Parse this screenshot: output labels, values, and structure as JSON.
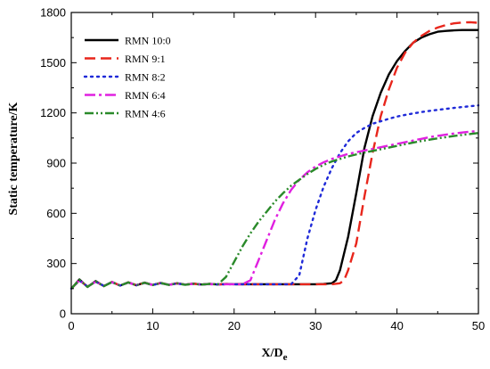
{
  "chart_data": {
    "type": "line",
    "title": "",
    "xlabel": "X/D",
    "xlabel_subscript": "e",
    "ylabel": "Static temperature/K",
    "xlim": [
      0,
      50
    ],
    "ylim": [
      0,
      1800
    ],
    "xticks": [
      0,
      10,
      20,
      30,
      40,
      50
    ],
    "yticks": [
      0,
      300,
      600,
      900,
      1200,
      1500,
      1800
    ],
    "grid": false,
    "legend_position": "top-left",
    "series": [
      {
        "name": "RMN 10:0",
        "color": "#000000",
        "dash": "solid",
        "x": [
          0,
          1,
          2,
          3,
          4,
          5,
          6,
          7,
          8,
          9,
          10,
          11,
          12,
          13,
          14,
          15,
          16,
          17,
          18,
          19,
          20,
          21,
          22,
          23,
          24,
          25,
          26,
          27,
          28,
          29,
          30,
          31,
          32,
          32.5,
          33,
          33.5,
          34,
          35,
          36,
          37,
          38,
          39,
          40,
          41,
          42,
          43,
          44,
          45,
          46,
          47,
          48,
          49,
          50
        ],
        "y": [
          150,
          205,
          160,
          195,
          165,
          190,
          168,
          188,
          170,
          186,
          172,
          184,
          173,
          182,
          174,
          180,
          175,
          179,
          175,
          178,
          176,
          177,
          176,
          176,
          176,
          176,
          176,
          176,
          176,
          176,
          176,
          178,
          182,
          200,
          260,
          360,
          460,
          720,
          990,
          1180,
          1320,
          1430,
          1510,
          1570,
          1620,
          1650,
          1670,
          1685,
          1690,
          1693,
          1695,
          1695,
          1695
        ]
      },
      {
        "name": "RMN 9:1",
        "color": "#e8261c",
        "dash": "long",
        "x": [
          0,
          1,
          2,
          3,
          4,
          5,
          6,
          7,
          8,
          9,
          10,
          11,
          12,
          13,
          14,
          15,
          16,
          17,
          18,
          19,
          20,
          21,
          22,
          23,
          24,
          25,
          26,
          27,
          28,
          29,
          30,
          31,
          32,
          33,
          33.5,
          34,
          35,
          36,
          37,
          38,
          39,
          40,
          41,
          42,
          43,
          44,
          45,
          46,
          47,
          48,
          49,
          50
        ],
        "y": [
          150,
          200,
          162,
          192,
          166,
          189,
          169,
          187,
          171,
          185,
          172,
          183,
          173,
          181,
          174,
          179,
          175,
          178,
          175,
          177,
          176,
          176,
          176,
          176,
          176,
          176,
          176,
          176,
          176,
          176,
          176,
          176,
          176,
          182,
          200,
          260,
          420,
          700,
          960,
          1180,
          1340,
          1470,
          1560,
          1620,
          1660,
          1690,
          1710,
          1725,
          1735,
          1740,
          1742,
          1738
        ]
      },
      {
        "name": "RMN 8:2",
        "color": "#1f2ad8",
        "dash": "dot",
        "x": [
          0,
          1,
          2,
          3,
          4,
          5,
          6,
          7,
          8,
          9,
          10,
          11,
          12,
          13,
          14,
          15,
          16,
          17,
          18,
          19,
          20,
          21,
          22,
          23,
          24,
          25,
          26,
          27,
          28,
          29,
          30,
          31,
          32,
          33,
          34,
          35,
          36,
          37,
          38,
          39,
          40,
          41,
          42,
          43,
          44,
          45,
          46,
          47,
          48,
          49,
          50
        ],
        "y": [
          150,
          198,
          163,
          191,
          167,
          188,
          169,
          186,
          171,
          184,
          172,
          182,
          173,
          180,
          174,
          178,
          175,
          177,
          175,
          176,
          176,
          176,
          176,
          176,
          176,
          176,
          176,
          176,
          230,
          450,
          620,
          760,
          870,
          960,
          1030,
          1080,
          1110,
          1135,
          1150,
          1165,
          1178,
          1188,
          1197,
          1205,
          1212,
          1218,
          1224,
          1230,
          1235,
          1240,
          1245
        ]
      },
      {
        "name": "RMN 6:4",
        "color": "#e020e0",
        "dash": "dashdot",
        "x": [
          0,
          1,
          2,
          3,
          4,
          5,
          6,
          7,
          8,
          9,
          10,
          11,
          12,
          13,
          14,
          15,
          16,
          17,
          18,
          19,
          20,
          21,
          22,
          23,
          24,
          25,
          26,
          27,
          28,
          29,
          30,
          31,
          32,
          33,
          34,
          35,
          36,
          37,
          38,
          39,
          40,
          41,
          42,
          43,
          44,
          45,
          46,
          47,
          48,
          49,
          50
        ],
        "y": [
          150,
          200,
          162,
          191,
          166,
          188,
          169,
          186,
          171,
          184,
          172,
          182,
          173,
          180,
          174,
          178,
          175,
          177,
          175,
          176,
          176,
          176,
          200,
          320,
          440,
          560,
          660,
          740,
          800,
          845,
          880,
          905,
          925,
          940,
          955,
          965,
          975,
          985,
          995,
          1005,
          1015,
          1025,
          1035,
          1045,
          1055,
          1063,
          1070,
          1077,
          1083,
          1088,
          1092
        ]
      },
      {
        "name": "RMN 4:6",
        "color": "#2a8a2a",
        "dash": "dashdotdot",
        "x": [
          0,
          1,
          2,
          3,
          4,
          5,
          6,
          7,
          8,
          9,
          10,
          11,
          12,
          13,
          14,
          15,
          16,
          17,
          18,
          19,
          20,
          21,
          22,
          23,
          24,
          25,
          26,
          27,
          28,
          29,
          30,
          31,
          32,
          33,
          34,
          35,
          36,
          37,
          38,
          39,
          40,
          41,
          42,
          43,
          44,
          45,
          46,
          47,
          48,
          49,
          50
        ],
        "y": [
          150,
          202,
          161,
          192,
          165,
          189,
          168,
          187,
          170,
          185,
          171,
          183,
          172,
          181,
          173,
          179,
          174,
          178,
          175,
          220,
          310,
          400,
          480,
          550,
          610,
          670,
          720,
          765,
          800,
          835,
          865,
          890,
          910,
          925,
          940,
          952,
          963,
          973,
          983,
          993,
          1003,
          1013,
          1023,
          1032,
          1040,
          1048,
          1055,
          1062,
          1068,
          1074,
          1080
        ]
      }
    ]
  }
}
